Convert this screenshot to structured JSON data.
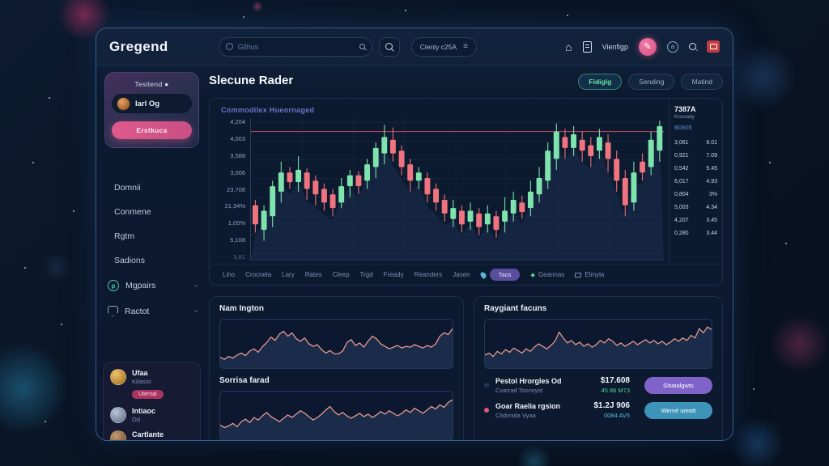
{
  "colors": {
    "accent_pink": "#e0598c",
    "candle_green": "#7fe3ad",
    "candle_red": "#f0747f",
    "resistance_line": "#e25560",
    "spark_line": "#e89a8e",
    "purple_button": "#7f63c9",
    "teal_button": "#3e93b8",
    "green_text": "#58d69a",
    "teal_text": "#4fc3d9"
  },
  "navbar": {
    "logo": "Gregend",
    "search_placeholder": "Gilhus",
    "currency_pill": "Cienly c25A",
    "nav_label": "Vienfigp"
  },
  "sidebar": {
    "profile": {
      "label": "Tesitend ●",
      "name": "Iarl Og",
      "action": "Erstkuca"
    },
    "menu": [
      "Domnii",
      "Conmene",
      "Rgtm",
      "Sadions"
    ],
    "tools": [
      {
        "label": "Mgpairs",
        "icon": "ring-p-icon"
      },
      {
        "label": "Ractot",
        "icon": "shield-icon"
      }
    ],
    "watchlist": [
      {
        "name": "Ufaa",
        "sub": "Kilasist",
        "badge": "Uternal",
        "avatar": "gold"
      },
      {
        "name": "Intiaoc",
        "sub": "Od",
        "badge": "",
        "avatar": "grey"
      },
      {
        "name": "Cartlante",
        "sub": "",
        "badge": "",
        "avatar": "brown"
      }
    ]
  },
  "main": {
    "title": "Slecune Rader",
    "tabs": [
      {
        "label": "Fidiglg",
        "active": true
      },
      {
        "label": "Sending",
        "active": false
      },
      {
        "label": "Matind",
        "active": false
      }
    ],
    "chart_label": "Commodilex Hueornaged",
    "toolbar": {
      "items": [
        "Lino",
        "Crocnela",
        "Lary",
        "Rates",
        "Cleep",
        "Trgd",
        "Fready",
        "Reanders",
        "Jasen"
      ],
      "pill": "Taos",
      "extras": [
        "Geannas",
        "Elmyla"
      ]
    },
    "price_panel": {
      "symbol": "7387A",
      "sub": "Kossady",
      "link": "B0605",
      "rows": [
        [
          "3,061",
          "8.01"
        ],
        [
          "0,921",
          "7.09"
        ],
        [
          "0,542",
          "5.45"
        ],
        [
          "6,017",
          "4.93"
        ],
        [
          "0,804",
          "3%"
        ],
        [
          "5,003",
          "4.34"
        ],
        [
          "4,207",
          "3.45"
        ],
        [
          "0,280",
          "3.44"
        ]
      ]
    }
  },
  "panels": {
    "left": {
      "title1": "Nam Ington",
      "title2": "Sorrisa farad"
    },
    "right": {
      "title": "Raygiant facuns",
      "assets": [
        {
          "name": "Pestol Hrorgles Od",
          "sub": "Cvarrad Toonsyst",
          "value": "$17.608",
          "change": "45 86 M73",
          "change_color": "#58d69a",
          "button": "Gttatalgwts",
          "button_color": "#7f63c9",
          "bullet": "#223455"
        },
        {
          "name": "Goar Raelia rgsion",
          "sub": "Clidimida Vyaa",
          "value": "$1.2J 906",
          "change": "0084 AV5",
          "change_color": "#4fc3d9",
          "button": "Wemé ureatt",
          "button_color": "#3e93b8",
          "bullet": "#e0597f"
        }
      ]
    }
  },
  "chart_data": [
    {
      "type": "candlestick",
      "name": "main-price-chart",
      "title": "Commodilex Hueornaged",
      "ylabels": [
        "4,204",
        "4,003",
        "3,588",
        "3,006",
        "23,708",
        "21,34%",
        "1,05%",
        "5,108"
      ],
      "ylabel_bottom": "3,81",
      "resistance_line_pct": 92,
      "grid": true,
      "candles_lowOpenCloseHigh_pct": [
        [
          18,
          38,
          24,
          42
        ],
        [
          12,
          20,
          34,
          38
        ],
        [
          22,
          30,
          52,
          56
        ],
        [
          40,
          48,
          62,
          70
        ],
        [
          50,
          62,
          55,
          66
        ],
        [
          48,
          55,
          64,
          74
        ],
        [
          42,
          62,
          50,
          65
        ],
        [
          38,
          56,
          46,
          60
        ],
        [
          34,
          50,
          40,
          54
        ],
        [
          30,
          46,
          36,
          50
        ],
        [
          36,
          40,
          52,
          58
        ],
        [
          44,
          52,
          60,
          64
        ],
        [
          46,
          60,
          52,
          63
        ],
        [
          50,
          56,
          68,
          72
        ],
        [
          58,
          66,
          80,
          84
        ],
        [
          68,
          76,
          88,
          97
        ],
        [
          70,
          86,
          76,
          95
        ],
        [
          60,
          78,
          66,
          82
        ],
        [
          48,
          68,
          56,
          72
        ],
        [
          50,
          56,
          62,
          66
        ],
        [
          40,
          58,
          46,
          62
        ],
        [
          34,
          50,
          40,
          54
        ],
        [
          26,
          42,
          32,
          46
        ],
        [
          22,
          28,
          36,
          42
        ],
        [
          18,
          34,
          24,
          38
        ],
        [
          20,
          26,
          34,
          40
        ],
        [
          16,
          32,
          22,
          36
        ],
        [
          18,
          24,
          32,
          38
        ],
        [
          14,
          30,
          20,
          34
        ],
        [
          18,
          26,
          34,
          44
        ],
        [
          26,
          32,
          42,
          48
        ],
        [
          28,
          40,
          33,
          45
        ],
        [
          30,
          36,
          48,
          56
        ],
        [
          40,
          46,
          58,
          66
        ],
        [
          50,
          56,
          78,
          84
        ],
        [
          64,
          72,
          92,
          98
        ],
        [
          72,
          88,
          80,
          94
        ],
        [
          74,
          80,
          90,
          96
        ],
        [
          70,
          86,
          78,
          92
        ],
        [
          66,
          82,
          74,
          88
        ],
        [
          72,
          78,
          88,
          94
        ],
        [
          62,
          84,
          72,
          90
        ],
        [
          48,
          72,
          56,
          78
        ],
        [
          30,
          58,
          38,
          64
        ],
        [
          34,
          40,
          62,
          70
        ],
        [
          56,
          70,
          62,
          76
        ],
        [
          60,
          66,
          86,
          92
        ],
        [
          70,
          78,
          96,
          100
        ]
      ]
    },
    {
      "type": "line",
      "name": "nam-ington-spark",
      "title": "Nam Ington",
      "values": [
        20,
        15,
        22,
        18,
        25,
        30,
        24,
        35,
        40,
        32,
        45,
        55,
        68,
        60,
        75,
        82,
        70,
        78,
        64,
        58,
        66,
        52,
        46,
        50,
        38,
        30,
        36,
        28,
        28,
        35,
        55,
        62,
        48,
        54,
        44,
        58,
        70,
        64,
        52,
        46,
        40,
        44,
        48,
        42,
        46,
        44,
        50,
        46,
        42,
        48,
        44,
        52,
        70,
        78,
        74,
        88
      ]
    },
    {
      "type": "line",
      "name": "sorrisa-spark",
      "title": "Sorrisa farad",
      "values": [
        30,
        24,
        28,
        34,
        26,
        38,
        44,
        36,
        48,
        42,
        52,
        60,
        50,
        44,
        38,
        46,
        54,
        48,
        56,
        64,
        58,
        50,
        42,
        48,
        56,
        66,
        74,
        62,
        54,
        60,
        52,
        46,
        52,
        58,
        50,
        56,
        48,
        54,
        62,
        56,
        64,
        58,
        52,
        58,
        66,
        60,
        70,
        64,
        58,
        66,
        74,
        68,
        78,
        72,
        84,
        90
      ]
    },
    {
      "type": "line",
      "name": "raygiant-spark",
      "title": "Raygiant facuns",
      "values": [
        25,
        30,
        22,
        34,
        28,
        38,
        32,
        42,
        36,
        30,
        40,
        34,
        44,
        52,
        46,
        40,
        48,
        58,
        80,
        66,
        54,
        60,
        50,
        56,
        46,
        52,
        44,
        50,
        60,
        54,
        64,
        58,
        48,
        54,
        46,
        52,
        58,
        50,
        56,
        62,
        54,
        60,
        52,
        58,
        50,
        56,
        64,
        58,
        66,
        60,
        72,
        66,
        88,
        78,
        92,
        86
      ]
    }
  ]
}
